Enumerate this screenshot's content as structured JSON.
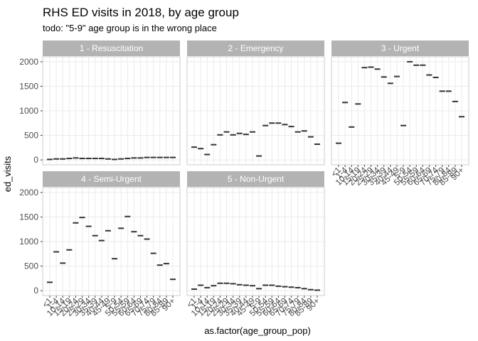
{
  "chart_data": {
    "type": "crossbar",
    "title": "RHS ED visits in 2018, by age group",
    "subtitle": "todo: \"5-9\" age group is in the wrong place",
    "x_label": "as.factor(age_group_pop)",
    "y_label": "ed_visits",
    "categories": [
      "<1",
      "1-4",
      "10-14",
      "15-19",
      "20-24",
      "25-29",
      "30-34",
      "35-39",
      "40-44",
      "45-49",
      "5-9",
      "50-54",
      "55-59",
      "60-64",
      "65-69",
      "70-74",
      "75-79",
      "80-84",
      "85-89",
      "90+"
    ],
    "ylim": [
      -100,
      2100
    ],
    "yticks": [
      0,
      500,
      1000,
      1500,
      2000
    ],
    "grid": true,
    "color": "#333333",
    "facets": [
      {
        "name": "1 - Resuscitation",
        "values": [
          10,
          20,
          20,
          30,
          40,
          30,
          30,
          30,
          30,
          20,
          10,
          20,
          30,
          40,
          40,
          50,
          50,
          50,
          50,
          50
        ]
      },
      {
        "name": "2 - Emergency",
        "values": [
          260,
          230,
          110,
          310,
          510,
          570,
          510,
          540,
          520,
          570,
          80,
          700,
          750,
          750,
          720,
          680,
          570,
          590,
          470,
          320
        ]
      },
      {
        "name": "3 - Urgent",
        "values": [
          340,
          1170,
          670,
          1140,
          1880,
          1890,
          1850,
          1690,
          1560,
          1700,
          700,
          2000,
          1930,
          1930,
          1730,
          1680,
          1400,
          1400,
          1190,
          880
        ]
      },
      {
        "name": "4 - Semi-Urgent",
        "values": [
          170,
          790,
          560,
          830,
          1380,
          1490,
          1310,
          1120,
          1020,
          1220,
          650,
          1270,
          1510,
          1200,
          1120,
          1050,
          760,
          520,
          550,
          230
        ]
      },
      {
        "name": "5 - Non-Urgent",
        "values": [
          30,
          110,
          60,
          100,
          150,
          150,
          140,
          120,
          110,
          100,
          40,
          110,
          110,
          90,
          80,
          70,
          60,
          40,
          20,
          10
        ]
      }
    ]
  }
}
